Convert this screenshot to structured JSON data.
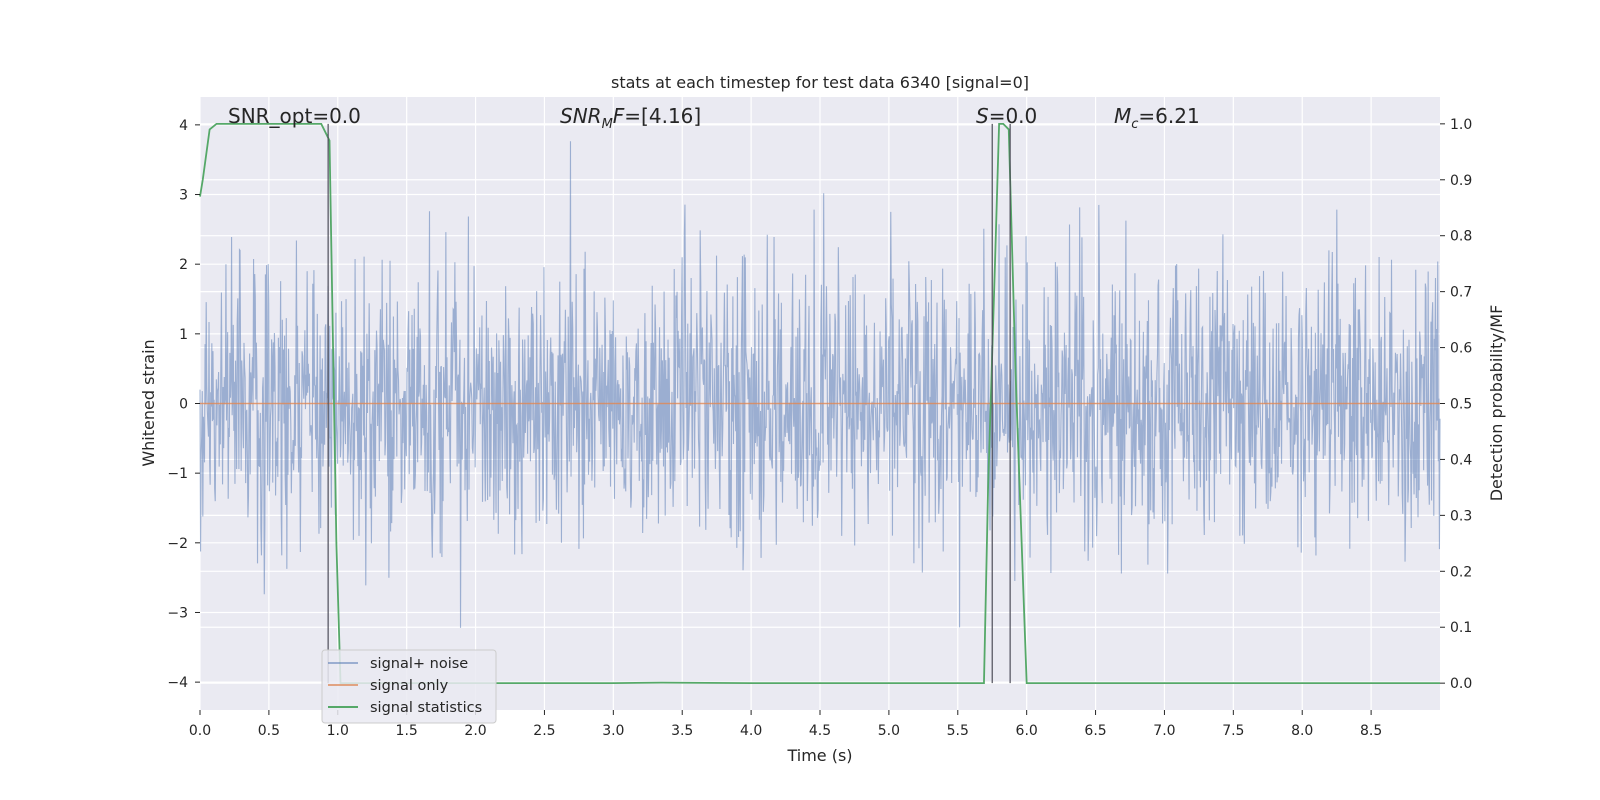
{
  "chart_data": {
    "type": "line",
    "title": "stats at each timestep for test data 6340 [signal=0]",
    "xlabel": "Time (s)",
    "ylabel": "Whitened strain",
    "y2label": "Detection probability/MF",
    "xlim": [
      0.0,
      9.0
    ],
    "ylim": [
      -4.4,
      4.4
    ],
    "y2lim": [
      -0.048,
      1.048
    ],
    "xticks": [
      0.0,
      0.5,
      1.0,
      1.5,
      2.0,
      2.5,
      3.0,
      3.5,
      4.0,
      4.5,
      5.0,
      5.5,
      6.0,
      6.5,
      7.0,
      7.5,
      8.0,
      8.5
    ],
    "xtick_labels": [
      "0.0",
      "0.5",
      "1.0",
      "1.5",
      "2.0",
      "2.5",
      "3.0",
      "3.5",
      "4.0",
      "4.5",
      "5.0",
      "5.5",
      "6.0",
      "6.5",
      "7.0",
      "7.5",
      "8.0",
      "8.5"
    ],
    "yticks": [
      4,
      3,
      2,
      1,
      0,
      -1,
      -2,
      -3,
      -4
    ],
    "ytick_labels": [
      "4",
      "3",
      "2",
      "1",
      "0",
      "−1",
      "−2",
      "−3",
      "−4"
    ],
    "y2ticks": [
      1.0,
      0.9,
      0.8,
      0.7,
      0.6,
      0.5,
      0.4,
      0.3,
      0.2,
      0.1,
      0.0
    ],
    "y2tick_labels": [
      "1.0",
      "0.9",
      "0.8",
      "0.7",
      "0.6",
      "0.5",
      "0.4",
      "0.3",
      "0.2",
      "0.1",
      "0.0"
    ],
    "grid": true,
    "annotations": [
      {
        "label": "SNR_opt=0.0",
        "x": 0.2
      },
      {
        "label": "SNR_MF=[4.16]",
        "x": 2.6
      },
      {
        "label": "S=0.0",
        "x": 5.6
      },
      {
        "label": "M_c=6.21",
        "x": 6.6
      }
    ],
    "annot_parts": {
      "snr_opt": "SNR_opt=0.0",
      "snr_mf_main": "SNR",
      "snr_mf_sub": "M",
      "snr_mf_tail": "F",
      "snr_mf_value": "=[4.16]",
      "s_main": "S",
      "s_value": "=0.0",
      "mc_main": "M",
      "mc_sub": "c",
      "mc_value": "=6.21"
    },
    "legend_placement": "lower-left",
    "series": [
      {
        "name": "signal+ noise",
        "axis": "left",
        "kind": "noise",
        "amplitude_range": [
          -4.0,
          4.0
        ],
        "typical_std": 1.0
      },
      {
        "name": "signal only",
        "axis": "left",
        "kind": "flat",
        "value": 0.0
      },
      {
        "name": "signal statistics",
        "axis": "right",
        "x": [
          0.0,
          0.02,
          0.07,
          0.12,
          0.3,
          0.6,
          0.88,
          0.94,
          0.99,
          1.02,
          1.5,
          2.0,
          3.0,
          3.35,
          4.0,
          5.0,
          5.5,
          5.69,
          5.72,
          5.77,
          5.8,
          5.83,
          5.87,
          5.92,
          6.0,
          6.5,
          7.0,
          7.5,
          8.0,
          8.5,
          9.0
        ],
        "y": [
          0.87,
          0.9,
          0.99,
          1.0,
          1.0,
          1.0,
          1.0,
          0.97,
          0.25,
          0.0,
          0.0,
          0.0,
          0.0,
          0.001,
          0.0,
          0.0,
          0.0,
          0.0,
          0.35,
          0.75,
          1.0,
          1.0,
          0.99,
          0.55,
          0.0,
          0.0,
          0.0,
          0.0,
          0.0,
          0.0,
          0.0
        ]
      }
    ],
    "threshold_lines": [
      {
        "x": 0.93
      },
      {
        "x": 5.75
      },
      {
        "x": 5.88
      }
    ],
    "colors": {
      "plot_background": "#EAEAF2",
      "grid": "#FFFFFF",
      "noise": "#4C72B0",
      "signal": "#DD8452",
      "statistics": "#55A868",
      "threshold": "#4D4D59"
    }
  }
}
